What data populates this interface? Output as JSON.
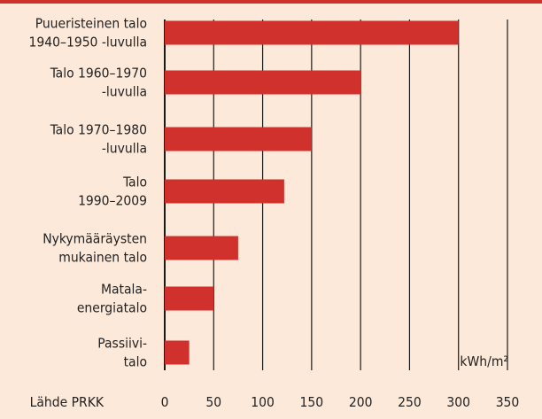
{
  "colors": {
    "background": "#fde9d9",
    "bar": "#d0312d",
    "grid": "#1a1a1a",
    "text": "#222222"
  },
  "chart_data": {
    "type": "bar",
    "orientation": "horizontal",
    "categories": [
      [
        "Puueristeinen talo",
        "1940–1950 -luvulla"
      ],
      [
        "Talo 1960–1970",
        "-luvulla"
      ],
      [
        "Talo 1970–1980",
        "-luvulla"
      ],
      [
        "Talo",
        "1990–2009"
      ],
      [
        "Nykymääräysten",
        "mukainen talo"
      ],
      [
        "Matala-",
        "energiatalo"
      ],
      [
        "Passiivi-",
        "talo"
      ]
    ],
    "values": [
      300,
      200,
      150,
      122,
      75,
      50,
      25
    ],
    "xlim": [
      0,
      350
    ],
    "xticks": [
      0,
      50,
      100,
      150,
      200,
      250,
      300,
      350
    ],
    "unit": "kWh/m²",
    "source": "Lähde PRKK",
    "grid": true
  }
}
